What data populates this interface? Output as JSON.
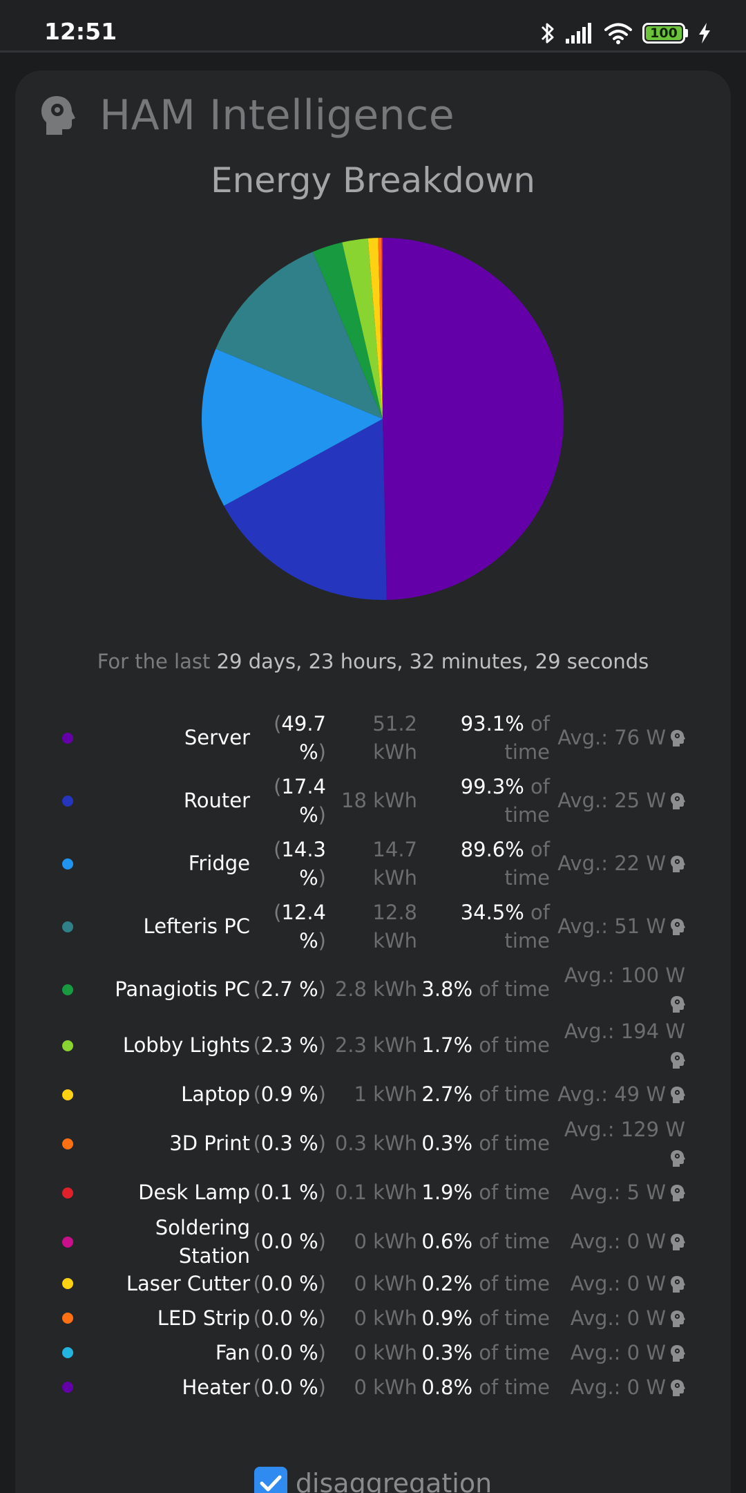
{
  "status_bar": {
    "time": "12:51",
    "battery": "100",
    "icons": [
      "bluetooth-icon",
      "signal-icon",
      "wifi-icon",
      "battery-icon",
      "charging-icon"
    ]
  },
  "header": {
    "title": "HAM Intelligence",
    "icon": "head-gear-icon"
  },
  "chart_title": "Energy Breakdown",
  "period": {
    "prefix": "For the last",
    "value": "29 days, 23 hours, 32 minutes, 29 seconds"
  },
  "chart_data": {
    "type": "pie",
    "title": "Energy Breakdown",
    "categories": [
      "Server",
      "Router",
      "Fridge",
      "Lefteris PC",
      "Panagiotis PC",
      "Lobby Lights",
      "Laptop",
      "3D Print",
      "Desk Lamp",
      "Soldering Station",
      "Laser Cutter",
      "LED Strip",
      "Fan",
      "Heater"
    ],
    "values": [
      49.7,
      17.4,
      14.3,
      12.4,
      2.7,
      2.3,
      0.9,
      0.3,
      0.1,
      0.0,
      0.0,
      0.0,
      0.0,
      0.0
    ],
    "colors": [
      "#6400a8",
      "#2535bd",
      "#2194f0",
      "#2f8088",
      "#179a40",
      "#89d430",
      "#fed112",
      "#fe7012",
      "#e0202a",
      "#c9108a",
      "#fed112",
      "#fe7012",
      "#24b4e0",
      "#6400a8"
    ],
    "legend_placement": "below"
  },
  "devices": [
    {
      "name": "Server",
      "pct": "49.7 %",
      "kwh": "51.2 kWh",
      "time": "93.1%",
      "avg": "Avg.: 76 W",
      "color": "#6400a8"
    },
    {
      "name": "Router",
      "pct": "17.4 %",
      "kwh": "18 kWh",
      "time": "99.3%",
      "avg": "Avg.: 25 W",
      "color": "#2535bd"
    },
    {
      "name": "Fridge",
      "pct": "14.3 %",
      "kwh": "14.7 kWh",
      "time": "89.6%",
      "avg": "Avg.: 22 W",
      "color": "#2194f0"
    },
    {
      "name": "Lefteris PC",
      "pct": "12.4 %",
      "kwh": "12.8 kWh",
      "time": "34.5%",
      "avg": "Avg.: 51 W",
      "color": "#2f8088"
    },
    {
      "name": "Panagiotis PC",
      "pct": "2.7 %",
      "kwh": "2.8 kWh",
      "time": "3.8%",
      "avg": "Avg.: 100 W",
      "color": "#179a40"
    },
    {
      "name": "Lobby Lights",
      "pct": "2.3 %",
      "kwh": "2.3 kWh",
      "time": "1.7%",
      "avg": "Avg.: 194 W",
      "color": "#89d430"
    },
    {
      "name": "Laptop",
      "pct": "0.9 %",
      "kwh": "1 kWh",
      "time": "2.7%",
      "avg": "Avg.: 49 W",
      "color": "#fed112"
    },
    {
      "name": "3D Print",
      "pct": "0.3 %",
      "kwh": "0.3 kWh",
      "time": "0.3%",
      "avg": "Avg.: 129 W",
      "color": "#fe7012"
    },
    {
      "name": "Desk Lamp",
      "pct": "0.1 %",
      "kwh": "0.1 kWh",
      "time": "1.9%",
      "avg": "Avg.: 5 W",
      "color": "#e0202a"
    },
    {
      "name": "Soldering Station",
      "pct": "0.0 %",
      "kwh": "0 kWh",
      "time": "0.6%",
      "avg": "Avg.: 0 W",
      "color": "#c9108a"
    },
    {
      "name": "Laser Cutter",
      "pct": "0.0 %",
      "kwh": "0 kWh",
      "time": "0.2%",
      "avg": "Avg.: 0 W",
      "color": "#fed112"
    },
    {
      "name": "LED Strip",
      "pct": "0.0 %",
      "kwh": "0 kWh",
      "time": "0.9%",
      "avg": "Avg.: 0 W",
      "color": "#fe7012"
    },
    {
      "name": "Fan",
      "pct": "0.0 %",
      "kwh": "0 kWh",
      "time": "0.3%",
      "avg": "Avg.: 0 W",
      "color": "#24b4e0"
    },
    {
      "name": "Heater",
      "pct": "0.0 %",
      "kwh": "0 kWh",
      "time": "0.8%",
      "avg": "Avg.: 0 W",
      "color": "#6400a8"
    }
  ],
  "labels": {
    "paren_open": "(",
    "paren_close": ")",
    "of_time": "of time"
  },
  "footer": {
    "checkbox_label": "disaggregation",
    "checked": true
  }
}
